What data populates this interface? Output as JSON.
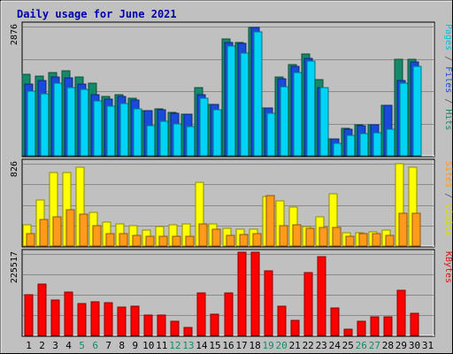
{
  "chart_data": {
    "type": "bar",
    "title": "Daily usage for June 2021",
    "days": [
      "1",
      "2",
      "3",
      "4",
      "5",
      "6",
      "7",
      "8",
      "9",
      "10",
      "11",
      "12",
      "13",
      "14",
      "15",
      "16",
      "17",
      "18",
      "19",
      "20",
      "21",
      "22",
      "23",
      "24",
      "25",
      "26",
      "27",
      "28",
      "29",
      "30",
      "31"
    ],
    "weekend_days": [
      "5",
      "6",
      "12",
      "13",
      "19",
      "20",
      "26",
      "27"
    ],
    "panels": [
      {
        "id": "hits",
        "max_label": "2876",
        "ymax": 2876,
        "label_parts": [
          {
            "text": "Pages",
            "color": "#00c0e0"
          },
          {
            "text": " / ",
            "color": "#555555"
          },
          {
            "text": "Files",
            "color": "#1a4adc"
          },
          {
            "text": " / ",
            "color": "#555555"
          },
          {
            "text": "Hits",
            "color": "#168a68"
          }
        ],
        "series": [
          {
            "name": "Hits",
            "color": "#168a68",
            "values": [
              1805,
              1770,
              1860,
              1900,
              1755,
              1620,
              1325,
              1360,
              1280,
              1010,
              1040,
              970,
              930,
              1520,
              1150,
              2600,
              2530,
              2850,
              1065,
              1755,
              2025,
              2270,
              1700,
              370,
              610,
              685,
              690,
              1130,
              2145,
              2140,
              0
            ]
          },
          {
            "name": "Files",
            "color": "#1a4adc",
            "values": [
              1595,
              1675,
              1745,
              1730,
              1595,
              1350,
              1270,
              1320,
              1240,
              1000,
              1020,
              950,
              920,
              1355,
              1150,
              2530,
              2500,
              2850,
              1060,
              1710,
              1980,
              2160,
              1520,
              370,
              585,
              665,
              680,
              1125,
              1665,
              2085,
              0
            ]
          },
          {
            "name": "Pages",
            "color": "#00d4f6",
            "values": [
              1445,
              1370,
              1620,
              1510,
              1480,
              1215,
              1100,
              1155,
              1040,
              665,
              760,
              700,
              650,
              1275,
              1030,
              2440,
              2285,
              2760,
              945,
              1530,
              1845,
              2110,
              1520,
              275,
              445,
              500,
              505,
              595,
              1620,
              1995,
              0
            ]
          }
        ]
      },
      {
        "id": "visits",
        "max_label": "826",
        "ymax": 826,
        "label_parts": [
          {
            "text": "Sites",
            "color": "#ff9a1a"
          },
          {
            "text": " / ",
            "color": "#555555"
          },
          {
            "text": "Visits",
            "color": "#dddd00"
          }
        ],
        "series": [
          {
            "name": "Visits",
            "color": "#ffff00",
            "values": [
              210,
              460,
              735,
              735,
              790,
              335,
              240,
              225,
              205,
              160,
              195,
              210,
              225,
              640,
              225,
              175,
              165,
              170,
              500,
              450,
              390,
              195,
              295,
              520,
              130,
              130,
              140,
              160,
              826,
              790,
              0
            ]
          },
          {
            "name": "Sites",
            "color": "#ff9a1a",
            "values": [
              120,
              270,
              290,
              365,
              320,
              200,
              120,
              120,
              110,
              100,
              100,
              100,
              100,
              220,
              165,
              110,
              115,
              120,
              505,
              200,
              210,
              180,
              190,
              185,
              100,
              120,
              125,
              110,
              330,
              330,
              0
            ]
          }
        ]
      },
      {
        "id": "kbytes",
        "max_label": "225517",
        "ymax": 225517,
        "label_parts": [
          {
            "text": "KBytes",
            "color": "#e01010"
          }
        ],
        "series": [
          {
            "name": "KBytes",
            "color": "#ff0000",
            "values": [
              113000,
              143000,
              98000,
              119000,
              88000,
              94000,
              91000,
              78000,
              82000,
              57000,
              57000,
              38000,
              23000,
              117000,
              60000,
              117000,
              230000,
              230000,
              178000,
              80000,
              42000,
              174000,
              219000,
              77000,
              16000,
              38000,
              52000,
              52000,
              124000,
              61000,
              0
            ]
          }
        ]
      }
    ]
  }
}
